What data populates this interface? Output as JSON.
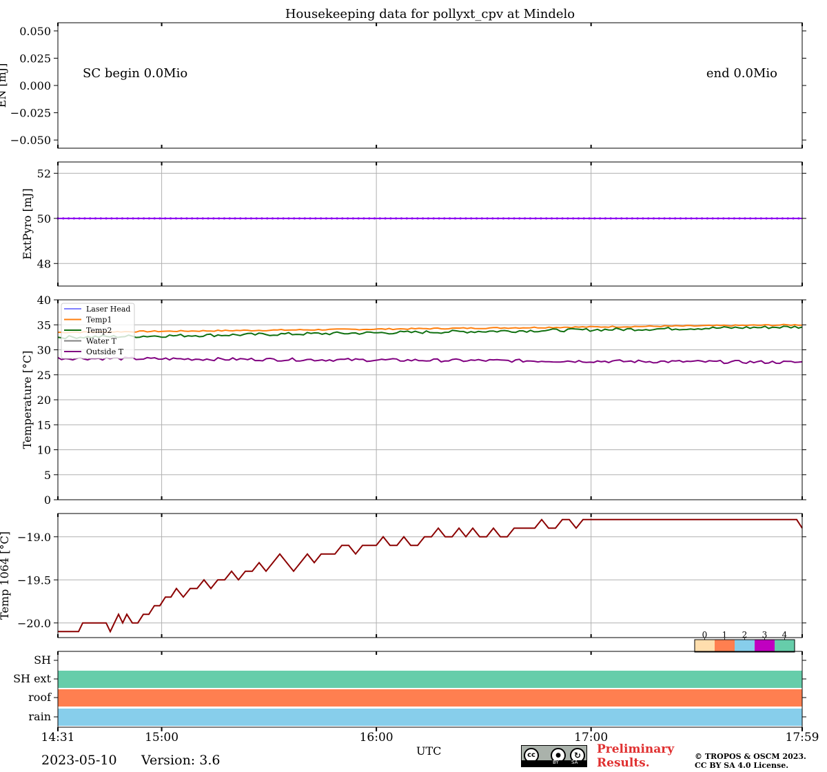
{
  "title": "Housekeeping data for pollyxt_cpv at Mindelo",
  "xlabel": "UTC",
  "date": "2023-05-10",
  "version": "Version: 3.6",
  "preliminary": [
    "Preliminary",
    "Results."
  ],
  "copyright": [
    "© TROPOS & OSCM 2023.",
    "CC BY SA 4.0 License."
  ],
  "cc_badge": {
    "cc": "cc",
    "by": "BY",
    "sa": "SA"
  },
  "colors": {
    "state_0": "#ffdead",
    "state_1": "#ff7f50",
    "state_2": "#87ceeb",
    "state_3": "#c000c0",
    "state_4": "#66cdaa"
  },
  "chart_data": [
    {
      "type": "line",
      "id": "en",
      "ylabel": "EN [mJ]",
      "ylim": [
        -0.0575,
        0.0575
      ],
      "yticks": [
        0.05,
        0.025,
        0.0,
        -0.025,
        -0.05
      ],
      "ytick_labels": [
        "0.050",
        "0.025",
        "0.000",
        "−0.025",
        "−0.050"
      ],
      "grid": false,
      "annotations": [
        "SC begin 0.0Mio",
        "end 0.0Mio"
      ],
      "series": []
    },
    {
      "type": "line",
      "id": "extpyro",
      "ylabel": "ExtPyro [mJ]",
      "ylim": [
        47,
        52.5
      ],
      "yticks": [
        52,
        50,
        48
      ],
      "ytick_labels": [
        "52",
        "50",
        "48"
      ],
      "grid": true,
      "series": [
        {
          "color": "#8a00f0",
          "constant": 50,
          "markers": true
        }
      ]
    },
    {
      "type": "line",
      "id": "temperature",
      "ylabel": "Temperature [$^\\circ C$]",
      "ylim": [
        0,
        40
      ],
      "yticks": [
        40,
        35,
        30,
        25,
        20,
        15,
        10,
        5,
        0
      ],
      "ytick_labels": [
        "40",
        "35",
        "30",
        "25",
        "20",
        "15",
        "10",
        "5",
        "0"
      ],
      "grid": true,
      "legend": "top-left",
      "series": [
        {
          "name": "Laser Head",
          "color": "#8080ff",
          "values": []
        },
        {
          "name": "Temp1",
          "color": "#ff7f0e",
          "start": 33.5,
          "end": 35.0
        },
        {
          "name": "Temp2",
          "color": "#107010",
          "start": 32.5,
          "end": 34.6
        },
        {
          "name": "Water T",
          "color": "#808080",
          "values": []
        },
        {
          "name": "Outside T",
          "color": "#800080",
          "start": 28.3,
          "end": 27.5
        }
      ]
    },
    {
      "type": "line",
      "id": "temp1064",
      "ylabel": "Temp 1064 [$^\\circ C$]",
      "ylim": [
        -20.17,
        -18.73
      ],
      "yticks": [
        -19.0,
        -19.5,
        -20.0
      ],
      "ytick_labels": [
        "−19.0",
        "−19.5",
        "−20.0"
      ],
      "grid": true,
      "series": [
        {
          "color": "#8b0000",
          "x": [
            0,
            30,
            36,
            70,
            76,
            82,
            88,
            94,
            100,
            108,
            116,
            124,
            132,
            140,
            148,
            156,
            164,
            172,
            182,
            192,
            202,
            212,
            222,
            232,
            242,
            252,
            262,
            272,
            282,
            292,
            302,
            312,
            322,
            332,
            342,
            352,
            362,
            372,
            382,
            392,
            402,
            412,
            422,
            432,
            442,
            452,
            462,
            472,
            482,
            492,
            502,
            512,
            522,
            532,
            542,
            552,
            562,
            572,
            582,
            592,
            602,
            612,
            622,
            632,
            642,
            652,
            662,
            672,
            682,
            692,
            702,
            712,
            722,
            732,
            742,
            752,
            762,
            772,
            782,
            792,
            802,
            812,
            822,
            832,
            842,
            852,
            862,
            872,
            882,
            892,
            902,
            912,
            922,
            932,
            942,
            952,
            962,
            972,
            982,
            992,
            1002,
            1012,
            1022,
            1032,
            1042,
            1052,
            1062,
            1072,
            1080
          ],
          "values": [
            -20.1,
            -20.1,
            -20.0,
            -20.0,
            -20.1,
            -20.0,
            -19.9,
            -20.0,
            -19.9,
            -20.0,
            -20.0,
            -19.9,
            -19.9,
            -19.8,
            -19.8,
            -19.7,
            -19.7,
            -19.6,
            -19.7,
            -19.6,
            -19.6,
            -19.5,
            -19.6,
            -19.5,
            -19.5,
            -19.4,
            -19.5,
            -19.4,
            -19.4,
            -19.3,
            -19.4,
            -19.3,
            -19.2,
            -19.3,
            -19.4,
            -19.3,
            -19.2,
            -19.3,
            -19.2,
            -19.2,
            -19.2,
            -19.1,
            -19.1,
            -19.2,
            -19.1,
            -19.1,
            -19.1,
            -19.0,
            -19.1,
            -19.1,
            -19.0,
            -19.1,
            -19.1,
            -19.0,
            -19.0,
            -18.9,
            -19.0,
            -19.0,
            -18.9,
            -19.0,
            -18.9,
            -19.0,
            -19.0,
            -18.9,
            -19.0,
            -19.0,
            -18.9,
            -18.9,
            -18.9,
            -18.9,
            -18.8,
            -18.9,
            -18.9,
            -18.8,
            -18.8,
            -18.9,
            -18.8,
            -18.8,
            -18.8,
            -18.8,
            -18.8,
            -18.8,
            -18.8,
            -18.8,
            -18.8,
            -18.8,
            -18.8,
            -18.8,
            -18.8,
            -18.8,
            -18.8,
            -18.8,
            -18.8,
            -18.8,
            -18.8,
            -18.8,
            -18.8,
            -18.8,
            -18.8,
            -18.8,
            -18.8,
            -18.8,
            -18.8,
            -18.8,
            -18.8,
            -18.8,
            -18.8,
            -18.8,
            -18.9
          ]
        }
      ]
    },
    {
      "type": "heatmap",
      "id": "status",
      "categories": [
        "SH",
        "SH ext",
        "roof",
        "rain"
      ],
      "states": [
        null,
        4,
        1,
        2
      ],
      "colorbar_ticks": [
        "0",
        "1",
        "2",
        "3",
        "4"
      ],
      "x_tick_labels": [
        "14:31",
        "15:00",
        "16:00",
        "17:00",
        "17:59"
      ]
    }
  ]
}
